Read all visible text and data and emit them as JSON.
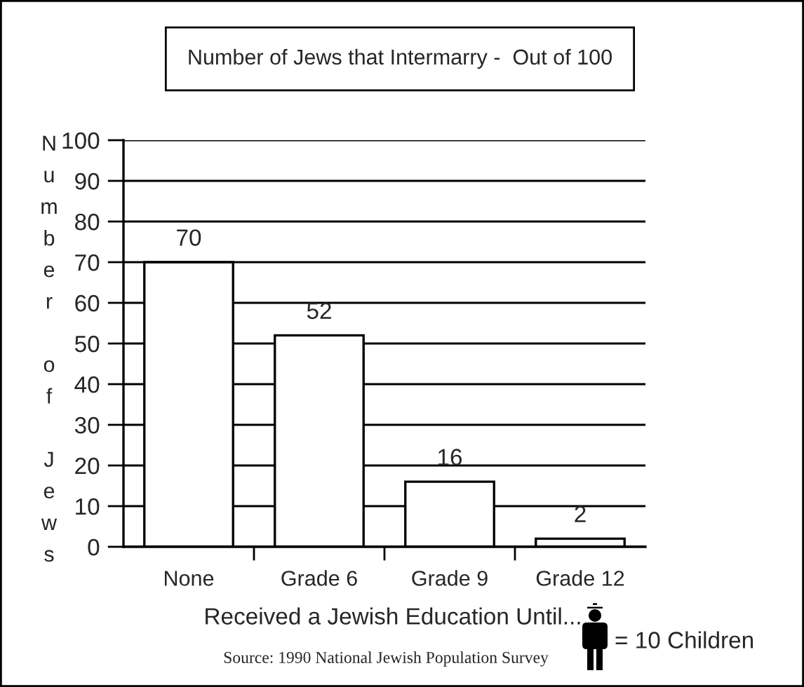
{
  "chart_data": {
    "type": "bar",
    "title": "Number of Jews that Intermarry -  Out of 100",
    "xlabel": "Received a Jewish Education Until...",
    "ylabel": "Number of Jews",
    "categories": [
      "None",
      "Grade 6",
      "Grade 9",
      "Grade 12"
    ],
    "values": [
      70,
      52,
      16,
      2
    ],
    "color": "#ffffff",
    "ylim": [
      0,
      100
    ],
    "yticks": [
      0,
      10,
      20,
      30,
      40,
      50,
      60,
      70,
      80,
      90,
      100
    ],
    "grid": "y",
    "data_labels": true,
    "annotations": [
      "= 10 Children",
      "Source: 1990 National Jewish Population Survey"
    ]
  }
}
